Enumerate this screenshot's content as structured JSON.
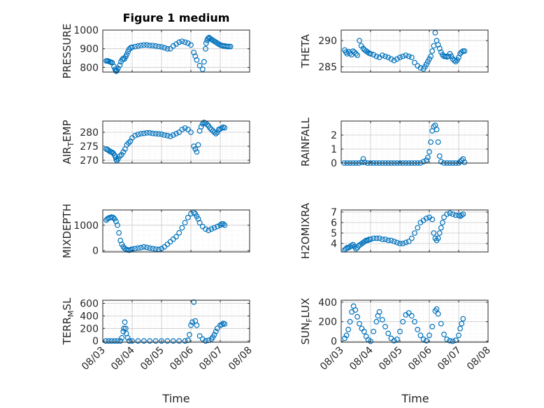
{
  "figure": {
    "title": "Figure 1 medium",
    "xlabel": "Time"
  },
  "colors": {
    "marker": "#0072BD",
    "axis": "#262626",
    "grid": "#c8c8c8"
  },
  "chart_data": [
    {
      "type": "scatter",
      "id": "pressure",
      "ylabel_main": "PRESSURE",
      "ylabel_sub": "",
      "ylabel_tail": "",
      "ylim": [
        775,
        1000
      ],
      "yticks": [
        800,
        900,
        1000
      ],
      "xlim": [
        0,
        5
      ],
      "xticks": [
        0,
        1,
        2,
        3,
        4,
        5
      ],
      "show_xticklabels": false,
      "grid": true,
      "x": [
        0.12,
        0.16,
        0.2,
        0.24,
        0.28,
        0.32,
        0.38,
        0.42,
        0.44,
        0.46,
        0.48,
        0.52,
        0.58,
        0.62,
        0.66,
        0.7,
        0.74,
        0.78,
        0.82,
        0.86,
        0.9,
        0.95,
        1.0,
        1.1,
        1.2,
        1.3,
        1.4,
        1.5,
        1.6,
        1.7,
        1.8,
        1.9,
        2.0,
        2.1,
        2.2,
        2.3,
        2.4,
        2.5,
        2.6,
        2.7,
        2.8,
        2.9,
        3.0,
        3.1,
        3.15,
        3.2,
        3.3,
        3.4,
        3.45,
        3.5,
        3.52,
        3.55,
        3.58,
        3.62,
        3.65,
        3.7,
        3.75,
        3.8,
        3.85,
        3.9,
        3.95,
        4.0,
        4.05,
        4.1,
        4.15,
        4.2,
        4.25,
        4.3,
        4.35
      ],
      "y": [
        835,
        835,
        833,
        830,
        828,
        825,
        805,
        790,
        783,
        780,
        785,
        795,
        812,
        830,
        842,
        848,
        845,
        858,
        870,
        885,
        898,
        905,
        908,
        912,
        915,
        918,
        920,
        920,
        918,
        917,
        915,
        912,
        910,
        905,
        900,
        900,
        915,
        925,
        935,
        940,
        935,
        930,
        920,
        880,
        860,
        840,
        810,
        790,
        830,
        900,
        930,
        945,
        955,
        960,
        955,
        950,
        945,
        940,
        935,
        930,
        925,
        920,
        918,
        915,
        915,
        913,
        912,
        912,
        912
      ]
    },
    {
      "type": "scatter",
      "id": "theta",
      "ylabel_main": "THETA",
      "ylabel_sub": "",
      "ylabel_tail": "",
      "ylim": [
        284,
        292
      ],
      "yticks": [
        285,
        290
      ],
      "xlim": [
        0,
        5
      ],
      "xticks": [
        0,
        1,
        2,
        3,
        4,
        5
      ],
      "show_xticklabels": false,
      "grid": true,
      "x": [
        0.12,
        0.16,
        0.2,
        0.25,
        0.3,
        0.35,
        0.4,
        0.45,
        0.5,
        0.55,
        0.62,
        0.68,
        0.75,
        0.8,
        0.85,
        0.9,
        0.95,
        1.0,
        1.1,
        1.2,
        1.3,
        1.4,
        1.5,
        1.6,
        1.7,
        1.8,
        1.9,
        2.0,
        2.1,
        2.2,
        2.3,
        2.4,
        2.5,
        2.6,
        2.7,
        2.8,
        2.85,
        2.9,
        2.95,
        3.0,
        3.05,
        3.1,
        3.15,
        3.2,
        3.25,
        3.3,
        3.35,
        3.4,
        3.45,
        3.5,
        3.55,
        3.6,
        3.65,
        3.7,
        3.75,
        3.8,
        3.85,
        3.9,
        3.95,
        4.0,
        4.05,
        4.1,
        4.15,
        4.2
      ],
      "y": [
        288.2,
        287.8,
        287.5,
        287.9,
        287.6,
        287.3,
        288.0,
        287.8,
        287.5,
        287.2,
        290.0,
        289.0,
        288.5,
        288.2,
        288.0,
        287.8,
        287.6,
        287.5,
        287.3,
        287.0,
        286.8,
        287.2,
        287.0,
        286.8,
        286.5,
        286.2,
        286.5,
        286.8,
        287.0,
        287.2,
        287.0,
        286.8,
        285.8,
        285.2,
        284.8,
        284.6,
        285.0,
        285.5,
        286.0,
        286.5,
        287.0,
        288.0,
        289.0,
        291.5,
        290.0,
        289.2,
        288.5,
        287.8,
        287.3,
        287.0,
        287.0,
        286.9,
        287.0,
        287.5,
        287.0,
        286.5,
        286.2,
        286.0,
        286.3,
        286.8,
        287.5,
        287.8,
        288.0,
        288.0
      ]
    },
    {
      "type": "scatter",
      "id": "air_temp",
      "ylabel_main": "AIR",
      "ylabel_sub": "T",
      "ylabel_tail": "EMP",
      "ylim": [
        269,
        284
      ],
      "yticks": [
        270,
        275,
        280
      ],
      "xlim": [
        0,
        5
      ],
      "xticks": [
        0,
        1,
        2,
        3,
        4,
        5
      ],
      "show_xticklabels": false,
      "grid": true,
      "x": [
        0.12,
        0.16,
        0.2,
        0.24,
        0.28,
        0.32,
        0.36,
        0.4,
        0.44,
        0.46,
        0.48,
        0.52,
        0.58,
        0.64,
        0.7,
        0.76,
        0.82,
        0.88,
        0.94,
        1.0,
        1.1,
        1.2,
        1.3,
        1.4,
        1.5,
        1.6,
        1.7,
        1.8,
        1.9,
        2.0,
        2.1,
        2.2,
        2.3,
        2.4,
        2.5,
        2.6,
        2.7,
        2.8,
        2.9,
        3.0,
        3.1,
        3.15,
        3.2,
        3.25,
        3.3,
        3.35,
        3.4,
        3.45,
        3.5,
        3.55,
        3.6,
        3.65,
        3.7,
        3.75,
        3.8,
        3.85,
        3.9,
        3.95,
        4.0,
        4.05,
        4.1,
        4.15
      ],
      "y": [
        274.0,
        273.8,
        273.5,
        273.2,
        273.0,
        272.8,
        272.5,
        271.8,
        271.0,
        270.2,
        269.8,
        270.5,
        271.5,
        272.0,
        273.0,
        274.0,
        275.5,
        276.2,
        276.8,
        278.0,
        278.8,
        279.2,
        279.5,
        279.6,
        279.8,
        279.8,
        279.6,
        279.5,
        279.4,
        279.3,
        279.0,
        278.8,
        278.5,
        279.0,
        279.5,
        280.0,
        281.0,
        281.5,
        281.0,
        280.0,
        275.0,
        274.0,
        273.0,
        275.5,
        280.5,
        282.0,
        283.0,
        283.5,
        283.2,
        282.8,
        282.3,
        281.5,
        281.0,
        280.5,
        280.0,
        279.5,
        280.0,
        281.0,
        281.2,
        281.5,
        281.8,
        281.6
      ]
    },
    {
      "type": "scatter",
      "id": "rainfall",
      "ylabel_main": "RAINFALL",
      "ylabel_sub": "",
      "ylabel_tail": "",
      "ylim": [
        0,
        3
      ],
      "yticks": [
        0,
        1,
        2
      ],
      "xlim": [
        0,
        5
      ],
      "xticks": [
        0,
        1,
        2,
        3,
        4,
        5
      ],
      "show_xticklabels": false,
      "grid": true,
      "x": [
        0.1,
        0.2,
        0.3,
        0.4,
        0.5,
        0.6,
        0.7,
        0.75,
        0.8,
        0.9,
        1.0,
        1.1,
        1.2,
        1.3,
        1.4,
        1.5,
        1.6,
        1.7,
        1.8,
        1.9,
        2.0,
        2.1,
        2.2,
        2.3,
        2.4,
        2.5,
        2.6,
        2.7,
        2.8,
        2.9,
        2.95,
        3.0,
        3.05,
        3.1,
        3.15,
        3.2,
        3.25,
        3.3,
        3.35,
        3.4,
        3.5,
        3.6,
        3.7,
        3.8,
        3.9,
        4.0,
        4.05,
        4.1,
        4.15,
        4.2
      ],
      "y": [
        0,
        0,
        0,
        0,
        0,
        0,
        0.05,
        0.3,
        0.05,
        0,
        0,
        0,
        0,
        0,
        0,
        0,
        0,
        0,
        0,
        0,
        0,
        0,
        0,
        0,
        0,
        0,
        0,
        0,
        0.1,
        0.2,
        0.4,
        0.8,
        1.5,
        2.3,
        2.6,
        2.7,
        2.4,
        1.5,
        0.5,
        0.1,
        0,
        0,
        0,
        0,
        0,
        0,
        0.1,
        0.2,
        0.3,
        0.05
      ]
    },
    {
      "type": "scatter",
      "id": "mixdepth",
      "ylabel_main": "MIXDEPTH",
      "ylabel_sub": "",
      "ylabel_tail": "",
      "ylim": [
        -50,
        1600
      ],
      "yticks": [
        0,
        1000
      ],
      "xlim": [
        0,
        5
      ],
      "xticks": [
        0,
        1,
        2,
        3,
        4,
        5
      ],
      "show_xticklabels": false,
      "grid": true,
      "x": [
        0.12,
        0.16,
        0.2,
        0.25,
        0.3,
        0.35,
        0.4,
        0.45,
        0.5,
        0.55,
        0.6,
        0.65,
        0.7,
        0.75,
        0.8,
        0.85,
        0.9,
        0.95,
        1.0,
        1.1,
        1.2,
        1.3,
        1.4,
        1.5,
        1.6,
        1.7,
        1.8,
        1.9,
        2.0,
        2.1,
        2.2,
        2.3,
        2.4,
        2.5,
        2.6,
        2.7,
        2.8,
        2.9,
        3.0,
        3.1,
        3.15,
        3.2,
        3.25,
        3.3,
        3.4,
        3.5,
        3.6,
        3.7,
        3.8,
        3.9,
        4.0,
        4.05,
        4.1,
        4.15
      ],
      "y": [
        1200,
        1250,
        1280,
        1300,
        1320,
        1300,
        1250,
        1150,
        1000,
        700,
        400,
        250,
        150,
        80,
        50,
        30,
        20,
        40,
        60,
        80,
        100,
        120,
        150,
        130,
        100,
        80,
        60,
        50,
        80,
        150,
        250,
        350,
        450,
        550,
        700,
        900,
        1100,
        1300,
        1450,
        1500,
        1450,
        1350,
        1250,
        1100,
        950,
        850,
        800,
        850,
        900,
        950,
        1000,
        1050,
        1050,
        1000
      ]
    },
    {
      "type": "scatter",
      "id": "h2omixra",
      "ylabel_main": "H2OMIXRA",
      "ylabel_sub": "",
      "ylabel_tail": "",
      "ylim": [
        3.2,
        7.2
      ],
      "yticks": [
        4,
        5,
        6,
        7
      ],
      "xlim": [
        0,
        5
      ],
      "xticks": [
        0,
        1,
        2,
        3,
        4,
        5
      ],
      "show_xticklabels": false,
      "grid": true,
      "x": [
        0.12,
        0.16,
        0.2,
        0.25,
        0.3,
        0.35,
        0.4,
        0.45,
        0.5,
        0.55,
        0.6,
        0.65,
        0.7,
        0.75,
        0.8,
        0.85,
        0.9,
        0.95,
        1.0,
        1.1,
        1.2,
        1.3,
        1.4,
        1.5,
        1.6,
        1.7,
        1.8,
        1.9,
        2.0,
        2.1,
        2.2,
        2.3,
        2.4,
        2.5,
        2.6,
        2.7,
        2.8,
        2.9,
        3.0,
        3.1,
        3.15,
        3.2,
        3.25,
        3.3,
        3.35,
        3.4,
        3.45,
        3.5,
        3.6,
        3.7,
        3.8,
        3.9,
        4.0,
        4.05,
        4.1,
        4.15
      ],
      "y": [
        3.4,
        3.5,
        3.6,
        3.6,
        3.7,
        3.8,
        3.9,
        3.7,
        3.5,
        3.6,
        3.8,
        3.9,
        4.0,
        4.1,
        4.2,
        4.3,
        4.3,
        4.4,
        4.4,
        4.5,
        4.5,
        4.5,
        4.4,
        4.4,
        4.3,
        4.3,
        4.2,
        4.1,
        4.0,
        4.0,
        4.1,
        4.2,
        4.5,
        5.0,
        5.5,
        6.0,
        6.2,
        6.4,
        6.5,
        6.3,
        5.0,
        4.5,
        4.3,
        4.5,
        5.0,
        5.5,
        6.0,
        6.5,
        6.8,
        6.9,
        6.8,
        6.7,
        6.7,
        6.6,
        6.7,
        6.8
      ]
    },
    {
      "type": "scatter",
      "id": "terr_msl",
      "ylabel_main": "TERR",
      "ylabel_sub": "M",
      "ylabel_tail": "SL",
      "ylim": [
        -20,
        650
      ],
      "yticks": [
        0,
        200,
        400,
        600
      ],
      "xlim": [
        0,
        5
      ],
      "xticks": [
        0,
        1,
        2,
        3,
        4,
        5
      ],
      "show_xticklabels": true,
      "xticklabels": [
        "08/03",
        "08/04",
        "08/05",
        "08/06",
        "08/07",
        "08/08"
      ],
      "grid": true,
      "x": [
        0.1,
        0.2,
        0.3,
        0.4,
        0.5,
        0.6,
        0.65,
        0.7,
        0.72,
        0.75,
        0.78,
        0.8,
        0.85,
        0.9,
        1.0,
        1.2,
        1.4,
        1.6,
        1.8,
        2.0,
        2.2,
        2.4,
        2.6,
        2.8,
        2.9,
        2.95,
        3.0,
        3.05,
        3.1,
        3.15,
        3.2,
        3.3,
        3.4,
        3.5,
        3.6,
        3.7,
        3.75,
        3.8,
        3.85,
        3.9,
        4.0,
        4.05,
        4.1,
        4.15
      ],
      "y": [
        0,
        0,
        0,
        0,
        0,
        0,
        50,
        150,
        200,
        300,
        200,
        120,
        50,
        0,
        0,
        0,
        0,
        0,
        0,
        0,
        0,
        0,
        0,
        0,
        10,
        100,
        250,
        300,
        620,
        320,
        250,
        80,
        30,
        0,
        10,
        30,
        60,
        100,
        150,
        200,
        250,
        260,
        280,
        270
      ]
    },
    {
      "type": "scatter",
      "id": "sun_flux",
      "ylabel_main": "SUN",
      "ylabel_sub": "F",
      "ylabel_tail": "LUX",
      "ylim": [
        -10,
        420
      ],
      "yticks": [
        0,
        200,
        400
      ],
      "xlim": [
        0,
        5
      ],
      "xticks": [
        0,
        1,
        2,
        3,
        4,
        5
      ],
      "show_xticklabels": true,
      "xticklabels": [
        "08/03",
        "08/04",
        "08/05",
        "08/06",
        "08/07",
        "08/08"
      ],
      "grid": true,
      "x": [
        0.12,
        0.18,
        0.24,
        0.3,
        0.36,
        0.42,
        0.48,
        0.55,
        0.62,
        0.7,
        0.78,
        0.85,
        0.92,
        1.0,
        1.1,
        1.2,
        1.25,
        1.3,
        1.4,
        1.5,
        1.6,
        1.7,
        1.8,
        1.9,
        2.0,
        2.1,
        2.2,
        2.3,
        2.4,
        2.5,
        2.6,
        2.7,
        2.8,
        2.9,
        3.0,
        3.1,
        3.2,
        3.25,
        3.3,
        3.4,
        3.5,
        3.6,
        3.7,
        3.8,
        3.9,
        4.0,
        4.05,
        4.1,
        4.15
      ],
      "y": [
        30,
        60,
        120,
        200,
        300,
        360,
        320,
        250,
        180,
        130,
        100,
        50,
        15,
        0,
        100,
        200,
        260,
        300,
        220,
        150,
        80,
        30,
        5,
        20,
        100,
        200,
        270,
        290,
        260,
        200,
        120,
        60,
        20,
        5,
        60,
        150,
        310,
        330,
        280,
        180,
        70,
        20,
        5,
        0,
        10,
        60,
        130,
        180,
        230
      ]
    }
  ]
}
